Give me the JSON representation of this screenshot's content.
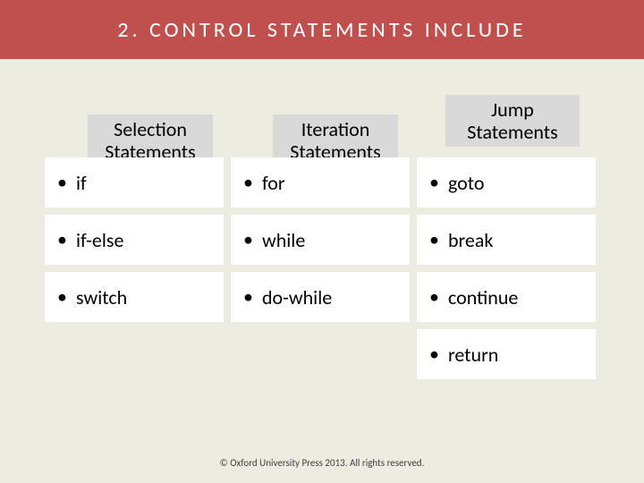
{
  "title": "2. CONTROL STATEMENTS INCLUDE",
  "title_bar_color": "#c0504d",
  "title_text_color": "#ffffff",
  "title_fontsize": 24,
  "title_letter_spacing": 4,
  "background_color": "#ecece1",
  "header_bg_color": "#d9d9d9",
  "cell_bg_color": "#ffffff",
  "headers": {
    "selection": "Selection Statements",
    "iteration": "Iteration Statements",
    "jump": "Jump Statements"
  },
  "rows": [
    {
      "selection": "if",
      "iteration": "for",
      "jump": "goto"
    },
    {
      "selection": "if-else",
      "iteration": "while",
      "jump": "break"
    },
    {
      "selection": "switch",
      "iteration": "do-while",
      "jump": "continue"
    },
    {
      "selection": null,
      "iteration": null,
      "jump": "return"
    }
  ],
  "bullet_char": "•",
  "footer": "© Oxford University Press 2013. All rights reserved."
}
